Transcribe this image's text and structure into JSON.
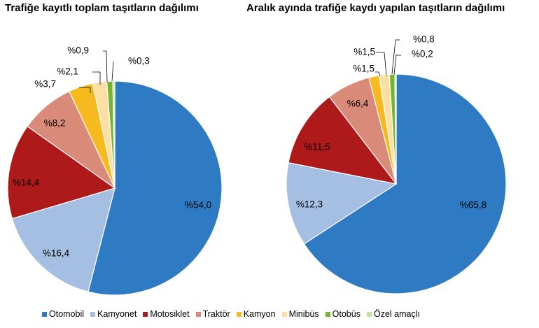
{
  "chart_data": [
    {
      "type": "pie",
      "title": "Trafiğe kayıtlı toplam taşıtların dağılımı",
      "categories": [
        "Otomobil",
        "Kamyonet",
        "Motosiklet",
        "Traktör",
        "Kamyon",
        "Minibüs",
        "Otobüs",
        "Özel amaçlı"
      ],
      "values": [
        54.0,
        16.4,
        14.4,
        8.2,
        3.7,
        2.1,
        0.9,
        0.3
      ],
      "labels": [
        "%54,0",
        "%16,4",
        "%14,4",
        "%8,2",
        "%3,7",
        "%2,1",
        "%0,9",
        "%0,3"
      ]
    },
    {
      "type": "pie",
      "title": "Aralık ayında trafiğe kaydı yapılan taşıtların dağılımı",
      "categories": [
        "Otomobil",
        "Kamyonet",
        "Motosiklet",
        "Traktör",
        "Kamyon",
        "Minibüs",
        "Otobüs",
        "Özel amaçlı"
      ],
      "values": [
        65.8,
        12.3,
        11.5,
        6.4,
        1.5,
        1.5,
        0.8,
        0.2
      ],
      "labels": [
        "%65,8",
        "%12,3",
        "%11,5",
        "%6,4",
        "%1,5",
        "%1,5",
        "%0,8",
        "%0,2"
      ]
    }
  ],
  "legend": {
    "position": "bottom",
    "items": [
      {
        "label": "Otomobil",
        "color": "#2E7BC4"
      },
      {
        "label": "Kamyonet",
        "color": "#A5BFE3"
      },
      {
        "label": "Motosiklet",
        "color": "#AE1A1A"
      },
      {
        "label": "Traktör",
        "color": "#D98A78"
      },
      {
        "label": "Kamyon",
        "color": "#F7BA1E"
      },
      {
        "label": "Minibüs",
        "color": "#FCDFA3"
      },
      {
        "label": "Otobüs",
        "color": "#74B432"
      },
      {
        "label": "Özel amaçlı",
        "color": "#C6DF9A"
      }
    ]
  }
}
